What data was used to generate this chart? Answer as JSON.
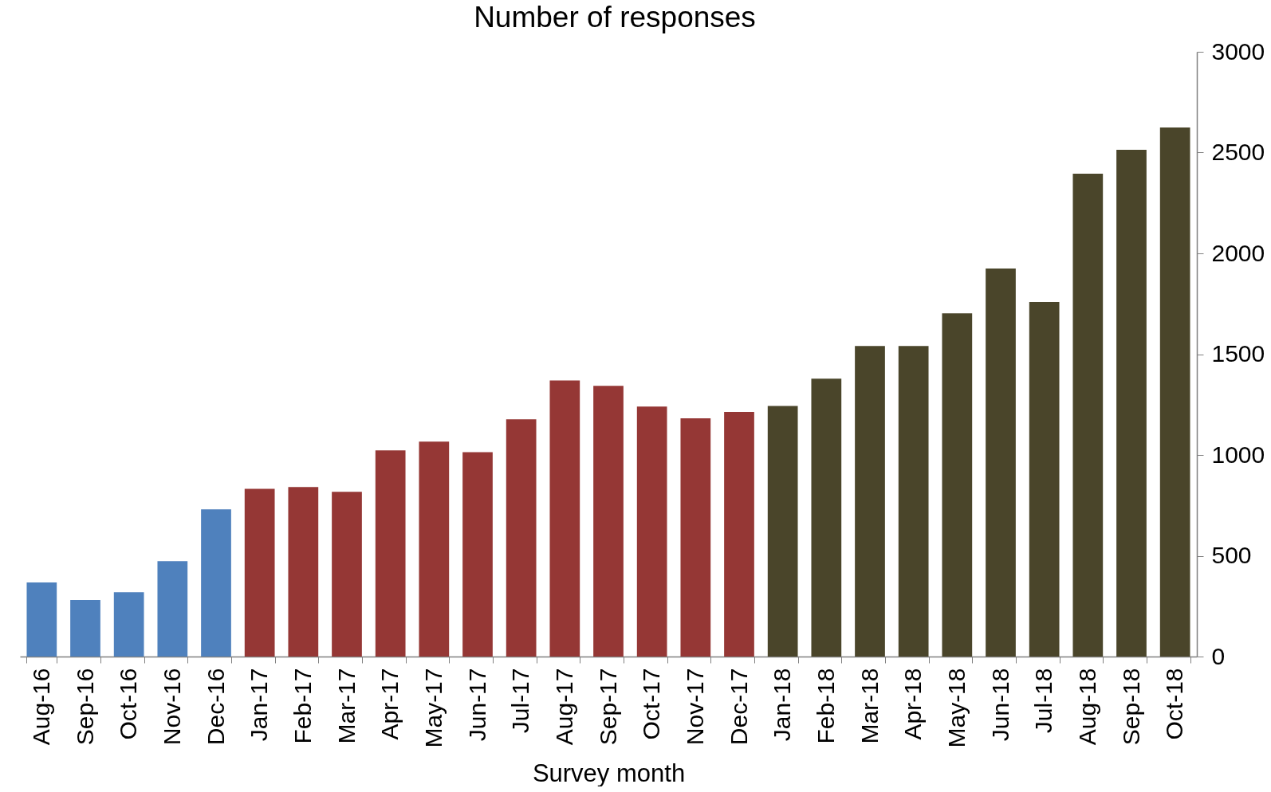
{
  "chart_data": {
    "type": "bar",
    "title": "Number of responses",
    "xlabel": "Survey month",
    "categories": [
      "Aug-16",
      "Sep-16",
      "Oct-16",
      "Nov-16",
      "Dec-16",
      "Jan-17",
      "Feb-17",
      "Mar-17",
      "Apr-17",
      "May-17",
      "Jun-17",
      "Jul-17",
      "Aug-17",
      "Sep-17",
      "Oct-17",
      "Nov-17",
      "Dec-17",
      "Jan-18",
      "Feb-18",
      "Mar-18",
      "Apr-18",
      "May-18",
      "Jun-18",
      "Jul-18",
      "Aug-18",
      "Sep-18",
      "Oct-18"
    ],
    "values": [
      368,
      281,
      319,
      473,
      730,
      832,
      841,
      817,
      1023,
      1066,
      1014,
      1177,
      1370,
      1343,
      1240,
      1182,
      1213,
      1243,
      1378,
      1541,
      1541,
      1703,
      1925,
      1759,
      2395,
      2514,
      2625
    ],
    "colors": [
      "#4f81bd",
      "#4f81bd",
      "#4f81bd",
      "#4f81bd",
      "#4f81bd",
      "#953735",
      "#953735",
      "#953735",
      "#953735",
      "#953735",
      "#953735",
      "#953735",
      "#953735",
      "#953735",
      "#953735",
      "#953735",
      "#953735",
      "#4a452a",
      "#4a452a",
      "#4a452a",
      "#4a452a",
      "#4a452a",
      "#4a452a",
      "#4a452a",
      "#4a452a",
      "#4a452a",
      "#4a452a"
    ],
    "ylim": [
      0,
      3000
    ],
    "yticks": [
      0,
      500,
      1000,
      1500,
      2000,
      2500,
      3000
    ]
  }
}
